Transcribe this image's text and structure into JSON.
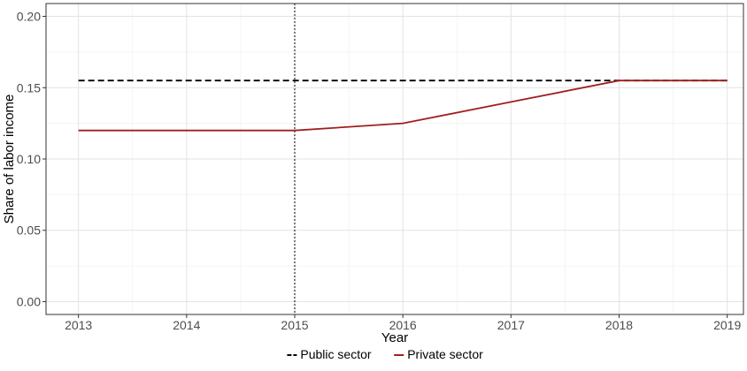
{
  "chart_data": {
    "type": "line",
    "xlabel": "Year",
    "ylabel": "Share of labor income",
    "x": [
      2013,
      2014,
      2015,
      2016,
      2017,
      2018,
      2019
    ],
    "x_ticks": [
      "2013",
      "2014",
      "2015",
      "2016",
      "2017",
      "2018",
      "2019"
    ],
    "y_ticks": [
      "0.00",
      "0.05",
      "0.10",
      "0.15",
      "0.20"
    ],
    "xlim": [
      2012.7,
      2019.15
    ],
    "ylim": [
      -0.009,
      0.209
    ],
    "grid": true,
    "legend_position": "bottom",
    "vline": {
      "x": 2015,
      "style": "dotted",
      "color": "#000000"
    },
    "series": [
      {
        "name": "Public sector",
        "color": "#000000",
        "style": "dashed",
        "x": [
          2013,
          2019
        ],
        "values": [
          0.155,
          0.155
        ]
      },
      {
        "name": "Private sector",
        "color": "#a11f1f",
        "style": "solid",
        "x": [
          2013,
          2014,
          2015,
          2016,
          2017,
          2018,
          2019
        ],
        "values": [
          0.12,
          0.12,
          0.12,
          0.125,
          0.14,
          0.155,
          0.155
        ]
      }
    ]
  }
}
